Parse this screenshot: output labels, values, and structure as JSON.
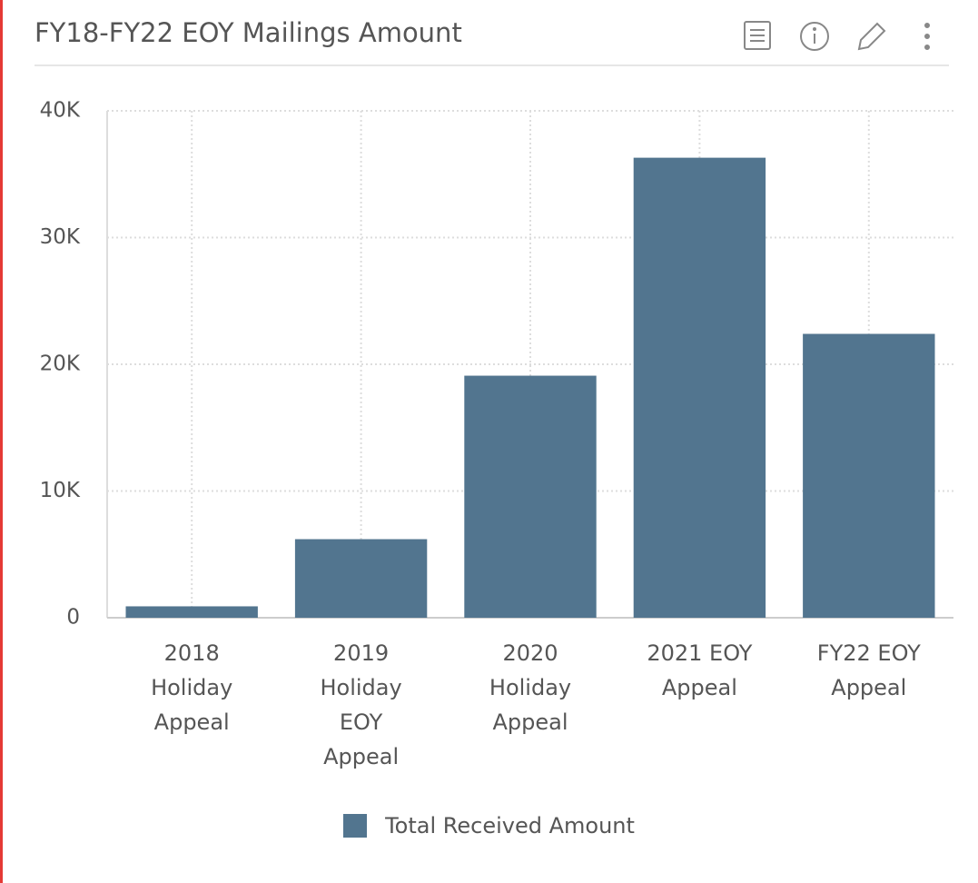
{
  "chart_data": {
    "type": "bar",
    "title": "FY18-FY22 EOY Mailings Amount",
    "categories": [
      "2018 Holiday Appeal",
      "2019 Holiday EOY Appeal",
      "2020 Holiday Appeal",
      "2021 EOY Appeal",
      "FY22 EOY Appeal"
    ],
    "series": [
      {
        "name": "Total Received Amount",
        "color": "#52758f",
        "values": [
          900,
          6200,
          19100,
          36300,
          22400
        ]
      }
    ],
    "ylim": [
      0,
      40000
    ],
    "yticks": [
      0,
      {
        "value": 10000,
        "label": "10K"
      },
      {
        "value": 20000,
        "label": "20K"
      },
      {
        "value": 30000,
        "label": "30K"
      },
      {
        "value": 40000,
        "label": "40K"
      }
    ],
    "grid": true,
    "legend": "bottom"
  }
}
